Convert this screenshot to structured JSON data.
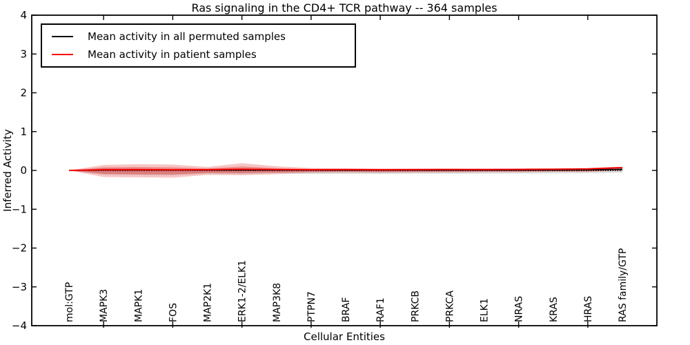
{
  "figure": {
    "title": "Ras signaling in the CD4+ TCR pathway -- 364 samples",
    "xlabel": "Cellular Entities",
    "ylabel": "Inferred Activity"
  },
  "legend": {
    "items": [
      {
        "label": "Mean activity in all permuted samples",
        "color": "#000000"
      },
      {
        "label": "Mean activity in patient samples",
        "color": "#ff0000"
      }
    ]
  },
  "chart_data": {
    "type": "line",
    "title": "Ras signaling in the CD4+ TCR pathway -- 364 samples",
    "xlabel": "Cellular Entities",
    "ylabel": "Inferred Activity",
    "ylim": [
      -4,
      4
    ],
    "yticks": [
      -4,
      -3,
      -2,
      -1,
      0,
      1,
      2,
      3,
      4
    ],
    "ytick_labels": [
      "−4",
      "−3",
      "−2",
      "−1",
      "0",
      "1",
      "2",
      "3",
      "4"
    ],
    "xtick_indices": [
      1,
      3,
      5,
      7,
      9,
      11,
      13,
      15
    ],
    "grid": false,
    "legend_position": "upper left",
    "categories": [
      "mol:GTP",
      "MAPK3",
      "MAPK1",
      "FOS",
      "MAP2K1",
      "ERK1-2/ELK1",
      "MAP3K8",
      "PTPN7",
      "BRAF",
      "RAF1",
      "PRKCB",
      "PRKCA",
      "ELK1",
      "NRAS",
      "KRAS",
      "HRAS",
      "RAS family/GTP"
    ],
    "series": [
      {
        "name": "Mean activity in all permuted samples",
        "color": "#000000",
        "values": [
          0,
          0.012,
          0.012,
          0.012,
          0.012,
          0.012,
          0.012,
          0.012,
          0.012,
          0.012,
          0.012,
          0.012,
          0.012,
          0.012,
          0.014,
          0.018,
          0.03
        ]
      },
      {
        "name": "Mean activity in patient samples",
        "color": "#ff0000",
        "values": [
          0,
          0.02,
          0.02,
          0.016,
          0.02,
          0.032,
          0.024,
          0.02,
          0.024,
          0.02,
          0.024,
          0.026,
          0.026,
          0.028,
          0.032,
          0.04,
          0.075
        ]
      }
    ],
    "reference_line": {
      "y": 0,
      "style": "dotted",
      "color": "#000000"
    },
    "bands": [
      {
        "name": "patient-band-outer",
        "color": "rgba(220,50,47,0.28)",
        "upper": [
          0,
          0.142,
          0.16,
          0.151,
          0.089,
          0.187,
          0.107,
          0.062,
          0.053,
          0.044,
          0.044,
          0.044,
          0.036,
          0.036,
          0.036,
          0.044,
          0.08
        ],
        "lower": [
          0,
          -0.169,
          -0.178,
          -0.187,
          -0.116,
          -0.124,
          -0.098,
          -0.062,
          -0.053,
          -0.062,
          -0.053,
          -0.053,
          -0.044,
          -0.044,
          -0.036,
          -0.036,
          0
        ]
      },
      {
        "name": "patient-band-inner",
        "color": "rgba(220,50,47,0.38)",
        "upper": [
          0,
          0.08,
          0.089,
          0.08,
          0.049,
          0.102,
          0.058,
          0.036,
          0.031,
          0.027,
          0.027,
          0.027,
          0.022,
          0.022,
          0.022,
          0.027,
          0.058
        ],
        "lower": [
          0,
          -0.089,
          -0.098,
          -0.102,
          -0.062,
          -0.067,
          -0.053,
          -0.036,
          -0.031,
          -0.036,
          -0.031,
          -0.031,
          -0.027,
          -0.027,
          -0.022,
          -0.022,
          0.009
        ]
      },
      {
        "name": "permuted-band",
        "color": "rgba(130,130,130,0.28)",
        "upper": [
          0,
          0.053,
          0.053,
          0.044,
          0.036,
          0.044,
          0.036,
          0.031,
          0.031,
          0.027,
          0.027,
          0.027,
          0.027,
          0.027,
          0.027,
          0.031,
          0.044
        ],
        "lower": [
          0,
          -0.107,
          -0.116,
          -0.124,
          -0.08,
          -0.089,
          -0.071,
          -0.089,
          -0.089,
          -0.089,
          -0.084,
          -0.084,
          -0.08,
          -0.08,
          -0.075,
          -0.071,
          -0.053
        ]
      }
    ]
  }
}
